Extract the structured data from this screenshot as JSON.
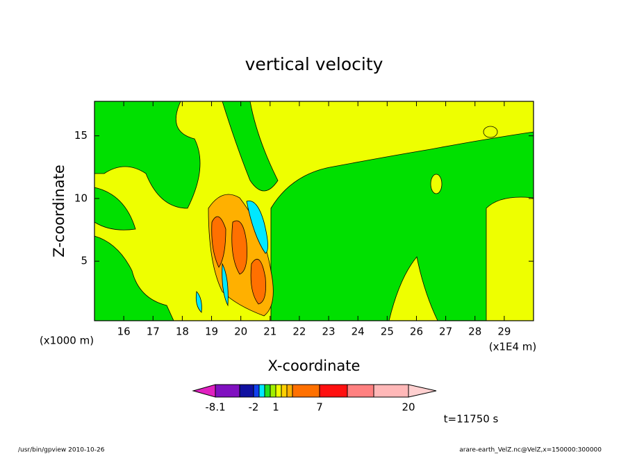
{
  "chart_data": {
    "type": "contour",
    "title": "vertical velocity",
    "xlabel": "X-coordinate",
    "ylabel": "Z-coordinate",
    "x_unit": "(x1E4 m)",
    "y_unit": "(x1000 m)",
    "xlim": [
      15,
      30
    ],
    "ylim": [
      0.25,
      17.75
    ],
    "xticks": [
      16,
      17,
      18,
      19,
      20,
      21,
      22,
      23,
      24,
      25,
      26,
      27,
      28,
      29
    ],
    "yticks": [
      5,
      10,
      15
    ],
    "colorbar": {
      "colors": [
        "#e020c0",
        "#8010c0",
        "#1010a0",
        "#1040f0",
        "#00e8ff",
        "#20e020",
        "#a0f000",
        "#f0ff00",
        "#ffd000",
        "#ffb000",
        "#ff7000",
        "#ff1010",
        "#ff8080",
        "#ffb8b8",
        "#ffd0d0"
      ],
      "labels": [
        -8.1,
        -2,
        1,
        7,
        20
      ]
    },
    "time_label": "t=11750 s",
    "footer_left": "/usr/bin/gpview   2010-10-26",
    "footer_right": "arare-earth_VelZ.nc@VelZ,x=150000:300000"
  }
}
